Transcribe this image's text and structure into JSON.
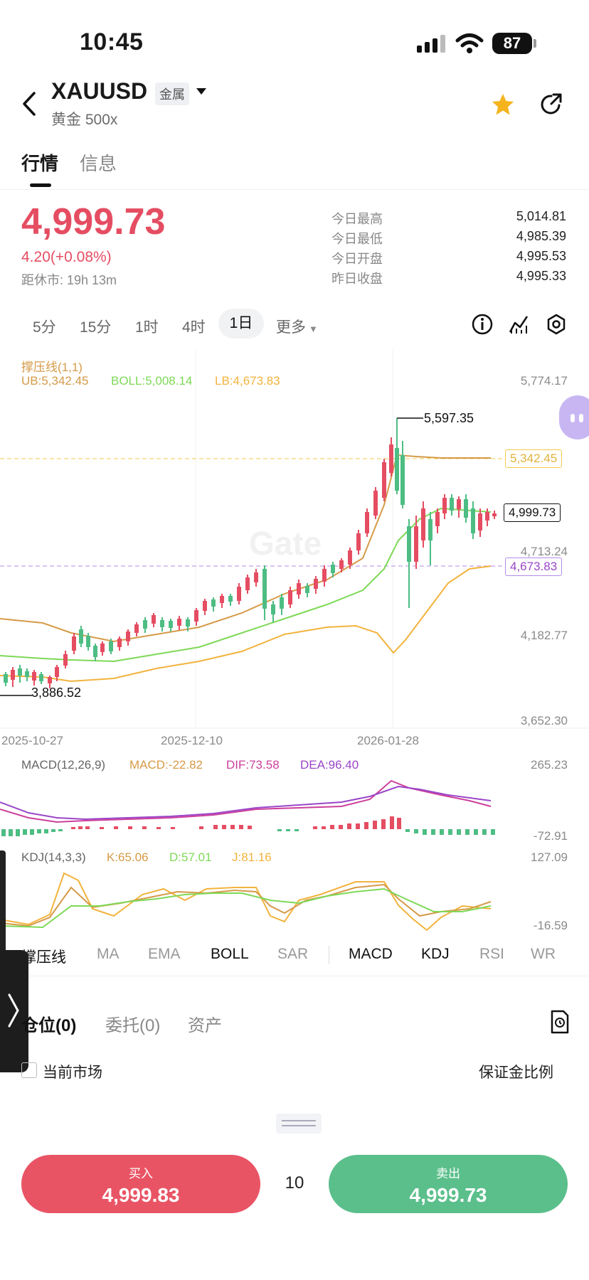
{
  "status": {
    "time": "10:45",
    "battery": "87"
  },
  "header": {
    "symbol": "XAUUSD",
    "category": "金属",
    "subtitle": "黄金 500x"
  },
  "tabs": [
    "行情",
    "信息"
  ],
  "quote": {
    "price": "4,999.73",
    "change": "4.20(+0.08%)",
    "close_countdown": "距休市: 19h 13m",
    "stats": [
      {
        "label": "今日最高",
        "value": "5,014.81"
      },
      {
        "label": "今日最低",
        "value": "4,985.39"
      },
      {
        "label": "今日开盘",
        "value": "4,995.53"
      },
      {
        "label": "昨日收盘",
        "value": "4,995.33"
      }
    ]
  },
  "intervals": [
    "5分",
    "15分",
    "1时",
    "4时",
    "1日",
    "更多"
  ],
  "active_interval": "1日",
  "chart": {
    "overlay_title": "撑压线(1,1)",
    "ub": "UB:5,342.45",
    "boll": "BOLL:5,008.14",
    "lb": "LB:4,673.83",
    "y_ticks": [
      "5,774.17",
      "4,713.24",
      "4,182.77",
      "3,652.30"
    ],
    "high_label": "5,597.35",
    "low_label": "3,886.52",
    "tag_ub": "5,342.45",
    "tag_price": "4,999.73",
    "tag_lb": "4,673.83",
    "dates": [
      "2025-10-27",
      "2025-12-10",
      "2026-01-28"
    ],
    "macd": {
      "name": "MACD(12,26,9)",
      "macd": "MACD:-22.82",
      "dif": "DIF:73.58",
      "dea": "DEA:96.40",
      "top": "265.23",
      "bottom": "-72.91"
    },
    "kdj": {
      "name": "KDJ(14,3,3)",
      "k": "K:65.06",
      "d": "D:57.01",
      "j": "J:81.16",
      "top": "127.09",
      "bottom": "-16.59"
    }
  },
  "indicator_tabs": [
    "撑压线",
    "MA",
    "EMA",
    "BOLL",
    "SAR",
    "MACD",
    "KDJ",
    "RSI",
    "WR"
  ],
  "positions": {
    "tabs": [
      "仓位(0)",
      "委托(0)",
      "资产"
    ],
    "filter": "当前市场",
    "margin": "保证金比例"
  },
  "trade": {
    "buy_label": "买入",
    "buy_price": "4,999.83",
    "qty": "10",
    "sell_label": "卖出",
    "sell_price": "4,999.73"
  },
  "colors": {
    "up": "#e54d62",
    "down": "#4dbd83",
    "ub": "#d59a48",
    "mid": "#7ed957",
    "lb": "#f2b33d",
    "dif": "#cc3f9b",
    "dea": "#9b45c9"
  }
}
